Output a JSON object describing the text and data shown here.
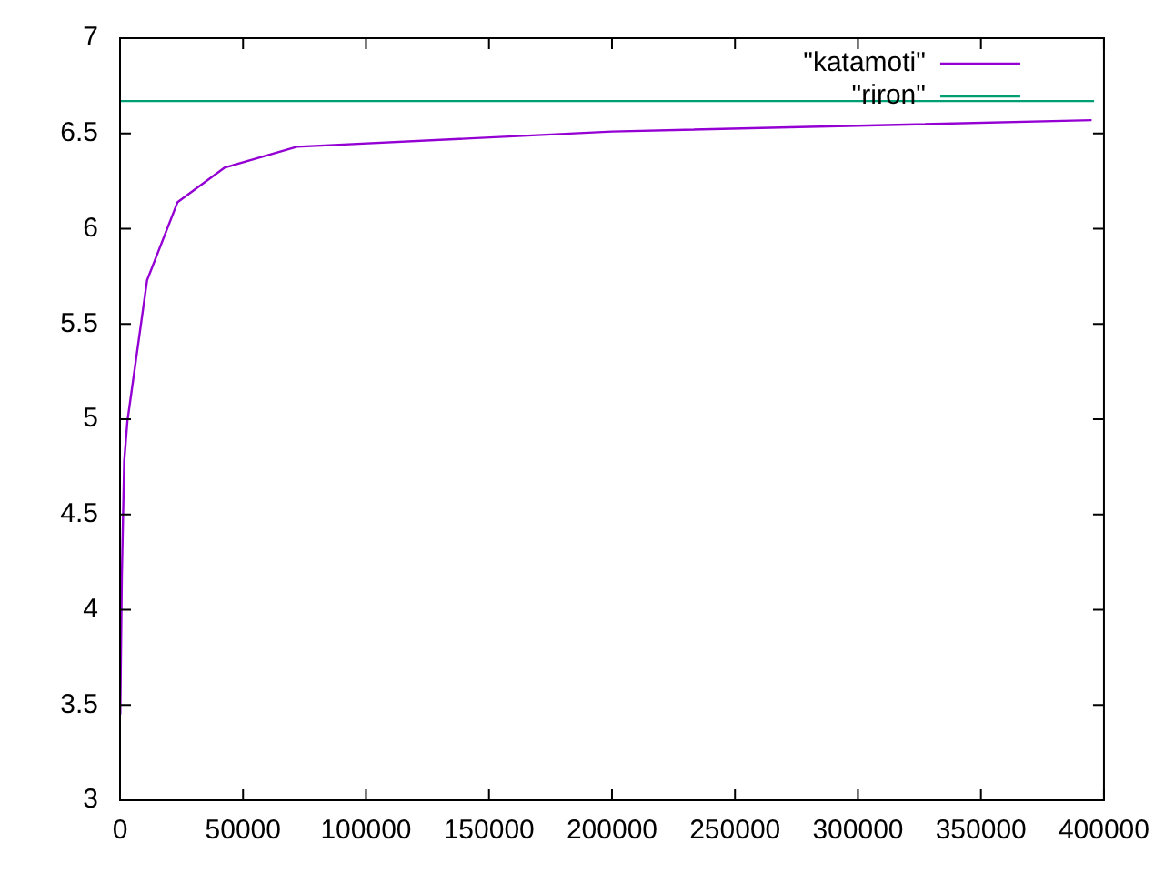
{
  "chart_data": {
    "type": "line",
    "series": [
      {
        "name": "\"katamoti\"",
        "color": "#9400d3",
        "x": [
          100,
          740,
          1700,
          3000,
          11000,
          23400,
          42400,
          71900,
          200000,
          395000
        ],
        "values": [
          3.45,
          4.18,
          4.78,
          4.99,
          5.73,
          6.14,
          6.32,
          6.43,
          6.51,
          6.57
        ]
      },
      {
        "name": "\"riron\"",
        "color": "#009e73",
        "x": [
          0,
          396000
        ],
        "values": [
          6.67,
          6.67
        ]
      }
    ],
    "xlim": [
      0,
      400000
    ],
    "xticks": [
      0,
      50000,
      100000,
      150000,
      200000,
      250000,
      300000,
      350000,
      400000
    ],
    "ylim": [
      3,
      7
    ],
    "yticks": [
      3,
      3.5,
      4,
      4.5,
      5,
      5.5,
      6,
      6.5,
      7
    ],
    "grid": false,
    "legend": "top right",
    "marker": "none",
    "line_style": "solid"
  }
}
